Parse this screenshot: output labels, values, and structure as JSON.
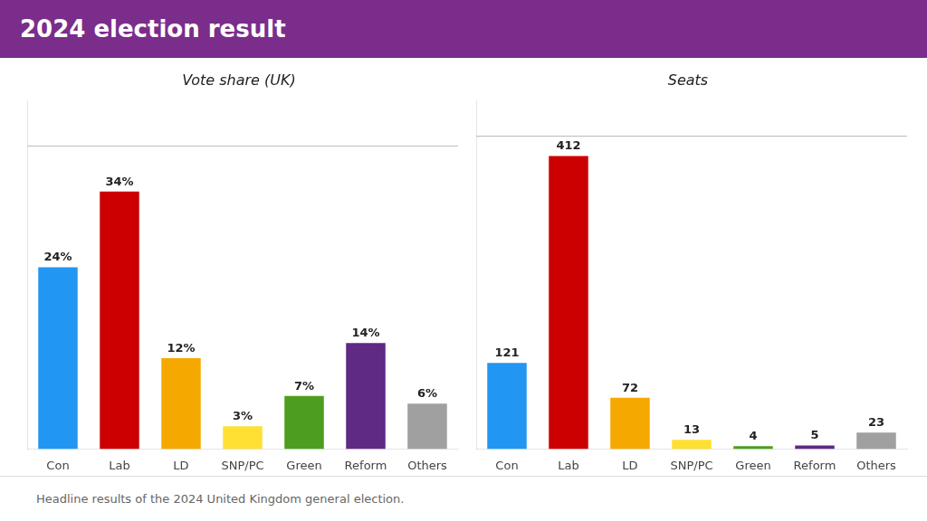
{
  "title": "2024 election result",
  "annotations": [
    "Headline results of the 2024 United Kingdom general election."
  ],
  "chart_data": [
    {
      "type": "bar",
      "title": "Vote share (UK)",
      "categories": [
        "Con",
        "Lab",
        "LD",
        "SNP/PC",
        "Green",
        "Reform",
        "Others"
      ],
      "values": [
        24,
        34,
        12,
        3,
        7,
        14,
        6
      ],
      "value_labels": [
        "24%",
        "34%",
        "12%",
        "3%",
        "7%",
        "14%",
        "6%"
      ],
      "colors": [
        "#2196F3",
        "#CC0000",
        "#F5A800",
        "#FFE033",
        "#4D9E1F",
        "#5E2A84",
        "#A0A0A0"
      ],
      "ylim": [
        0,
        46
      ],
      "reference_lines": [
        40
      ],
      "grid": false,
      "data_labels": true,
      "tick_labels": "x"
    },
    {
      "type": "bar",
      "title": "Seats",
      "categories": [
        "Con",
        "Lab",
        "LD",
        "SNP/PC",
        "Green",
        "Reform",
        "Others"
      ],
      "values": [
        121,
        412,
        72,
        13,
        4,
        5,
        23
      ],
      "colors": [
        "#2196F3",
        "#CC0000",
        "#F5A800",
        "#FFE033",
        "#4D9E1F",
        "#5E2A84",
        "#A0A0A0"
      ],
      "ylim": [
        0,
        490
      ],
      "reference_lines": [
        440
      ],
      "grid": false,
      "data_labels": true,
      "tick_labels": "x"
    }
  ]
}
